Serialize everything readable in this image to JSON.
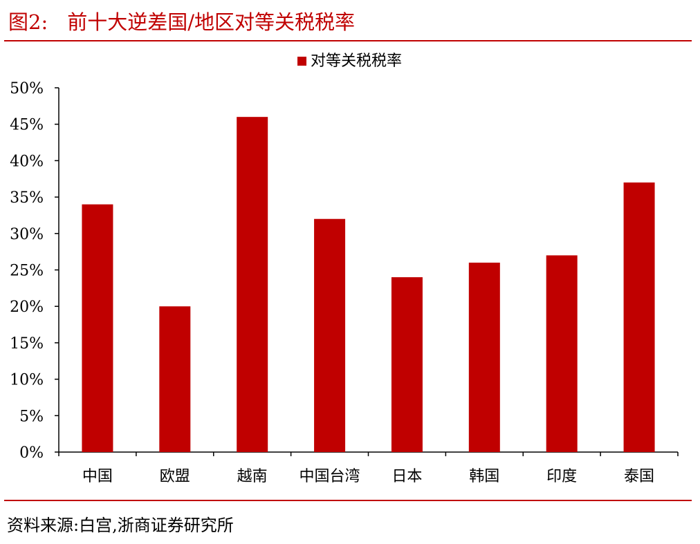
{
  "figure": {
    "label": "图2:",
    "title": "前十大逆差国/地区对等关税税率",
    "source": "资料来源:白宫,浙商证券研究所"
  },
  "colors": {
    "bar": "#c00000",
    "rule": "#c00000",
    "axis": "#000000"
  },
  "chart_data": {
    "type": "bar",
    "categories": [
      "中国",
      "欧盟",
      "越南",
      "中国台湾",
      "日本",
      "韩国",
      "印度",
      "泰国"
    ],
    "series": [
      {
        "name": "对等关税税率",
        "values": [
          34,
          20,
          46,
          32,
          24,
          26,
          27,
          37
        ]
      }
    ],
    "ylim": [
      0,
      50
    ],
    "yticks": [
      0,
      5,
      10,
      15,
      20,
      25,
      30,
      35,
      40,
      45,
      50
    ],
    "ytick_labels": [
      "0%",
      "5%",
      "10%",
      "15%",
      "20%",
      "25%",
      "30%",
      "35%",
      "40%",
      "45%",
      "50%"
    ],
    "xlabel": "",
    "ylabel": "",
    "grid": false,
    "legend_position": "top-center"
  }
}
